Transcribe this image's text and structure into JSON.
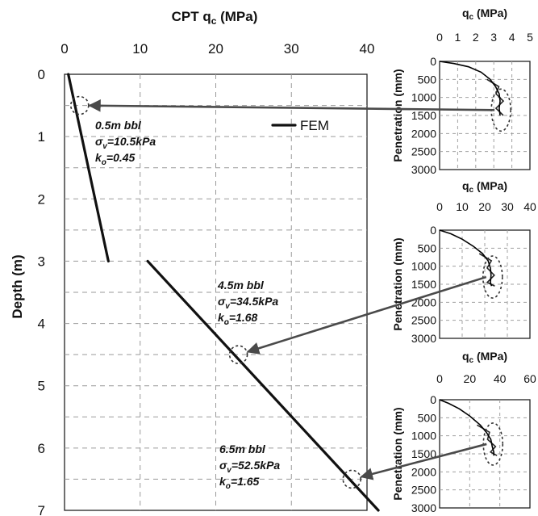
{
  "chart_data": [
    {
      "type": "line",
      "title": "CPT q",
      "title_sub": "c",
      "title_unit": " (MPa)",
      "ylabel": "Depth (m)",
      "xlim": [
        0,
        40
      ],
      "ylim": [
        0,
        7
      ],
      "x_ticks": [
        "0",
        "10",
        "20",
        "30",
        "40"
      ],
      "y_ticks": [
        "0",
        "1",
        "2",
        "3",
        "4",
        "5",
        "6",
        "7"
      ],
      "grid": true,
      "legend": {
        "position": "top-right",
        "label": "FEM"
      },
      "series": [
        {
          "name": "FEM",
          "segments": [
            [
              [
                0.5,
                0.0
              ],
              [
                5.8,
                3.0
              ]
            ],
            [
              [
                11.0,
                3.0
              ],
              [
                41.5,
                7.0
              ]
            ]
          ]
        }
      ],
      "annotations": [
        {
          "depth": 0.5,
          "qc": 2.0,
          "lines": [
            "0.5m bbl",
            "σv=10.5kPa",
            "ko=0.45"
          ],
          "sub_index": 0
        },
        {
          "depth": 4.5,
          "qc": 23.0,
          "lines": [
            "4.5m bbl",
            "σv=34.5kPa",
            "ko=1.68"
          ],
          "sub_index": 1
        },
        {
          "depth": 6.5,
          "qc": 38.0,
          "lines": [
            "6.5m bbl",
            "σv=52.5kPa",
            "ko=1.65"
          ],
          "sub_index": 2
        }
      ]
    },
    {
      "type": "line",
      "title": "q",
      "title_sub": "c",
      "title_unit": " (MPa)",
      "ylabel": "Penetration (mm)",
      "xlim": [
        0,
        5
      ],
      "ylim": [
        0,
        3000
      ],
      "x_ticks": [
        "0",
        "1",
        "2",
        "3",
        "4",
        "5"
      ],
      "y_ticks": [
        "0",
        "500",
        "1000",
        "1500",
        "2000",
        "2500",
        "3000"
      ],
      "grid": true,
      "profile": [
        [
          0,
          0
        ],
        [
          0.8,
          60
        ],
        [
          1.6,
          150
        ],
        [
          2.3,
          300
        ],
        [
          2.8,
          500
        ],
        [
          3.1,
          700
        ],
        [
          3.3,
          900
        ],
        [
          3.35,
          1100
        ],
        [
          3.3,
          1300
        ],
        [
          3.35,
          1500
        ]
      ],
      "highlight": {
        "qc": 3.4,
        "penetration": 1350
      }
    },
    {
      "type": "line",
      "title": "q",
      "title_sub": "c",
      "title_unit": " (MPa)",
      "ylabel": "Penetration (mm)",
      "xlim": [
        0,
        40
      ],
      "ylim": [
        0,
        3000
      ],
      "x_ticks": [
        "0",
        "10",
        "20",
        "30",
        "40"
      ],
      "y_ticks": [
        "0",
        "500",
        "1000",
        "1500",
        "2000",
        "2500",
        "3000"
      ],
      "grid": true,
      "profile": [
        [
          0,
          0
        ],
        [
          5,
          100
        ],
        [
          10,
          250
        ],
        [
          15,
          450
        ],
        [
          19,
          650
        ],
        [
          21.5,
          850
        ],
        [
          22.5,
          1050
        ],
        [
          22.8,
          1250
        ],
        [
          22.5,
          1450
        ],
        [
          23,
          1550
        ]
      ],
      "highlight": {
        "qc": 23.5,
        "penetration": 1300
      }
    },
    {
      "type": "line",
      "title": "q",
      "title_sub": "c",
      "title_unit": " (MPa)",
      "ylabel": "Penetration (mm)",
      "xlim": [
        0,
        60
      ],
      "ylim": [
        0,
        3000
      ],
      "x_ticks": [
        "0",
        "20",
        "40",
        "60"
      ],
      "y_ticks": [
        "0",
        "500",
        "1000",
        "1500",
        "2000",
        "2500",
        "3000"
      ],
      "grid": true,
      "profile": [
        [
          0,
          0
        ],
        [
          6,
          100
        ],
        [
          13,
          250
        ],
        [
          20,
          450
        ],
        [
          27,
          700
        ],
        [
          31,
          900
        ],
        [
          34,
          1100
        ],
        [
          35,
          1300
        ],
        [
          36,
          1450
        ],
        [
          36,
          1550
        ]
      ],
      "highlight": {
        "qc": 35.5,
        "penetration": 1230
      }
    }
  ]
}
